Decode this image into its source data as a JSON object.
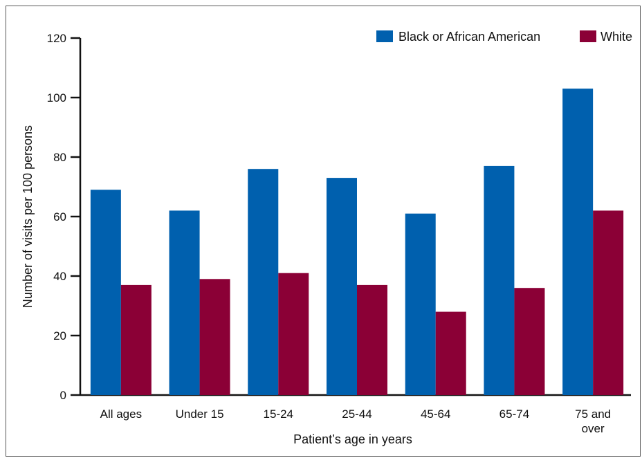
{
  "chart_data": {
    "type": "bar",
    "title": "",
    "xlabel": "Patient’s age in years",
    "ylabel": "Number of visits per 100 persons",
    "ylim": [
      0,
      120
    ],
    "yticks": [
      0,
      20,
      40,
      60,
      80,
      100,
      120
    ],
    "yticks_text": [
      "0",
      "20",
      "40",
      "60",
      "80",
      "100",
      "120"
    ],
    "categories": [
      [
        "All ages"
      ],
      [
        "Under 15"
      ],
      [
        "15-24"
      ],
      [
        "25-44"
      ],
      [
        "45-64"
      ],
      [
        "65-74"
      ],
      [
        "75 and",
        "over"
      ]
    ],
    "series": [
      {
        "name": "Black or African American",
        "color": "#0060AE",
        "values": [
          69,
          62,
          76,
          73,
          61,
          77,
          103
        ]
      },
      {
        "name": "White",
        "color": "#8B0036",
        "values": [
          37,
          39,
          41,
          37,
          28,
          36,
          62
        ]
      }
    ],
    "grid": false,
    "legend_position": "top-right"
  }
}
